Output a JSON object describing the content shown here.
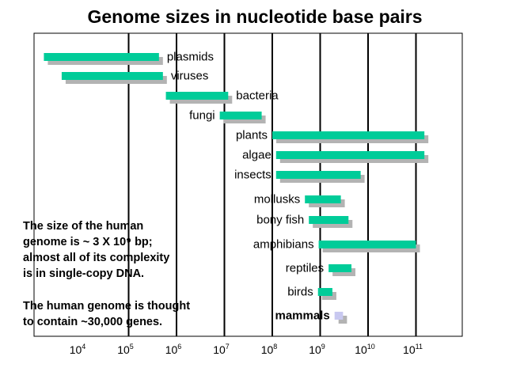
{
  "chart_data": {
    "type": "range-bar",
    "title": "Genome sizes in nucleotide base pairs",
    "x_scale": "log10",
    "xlim": [
      1000,
      10000000000000
    ],
    "gridlines_at": [
      100000,
      1000000,
      10000000,
      100000000,
      1000000000,
      10000000000,
      100000000000
    ],
    "xticks": [
      {
        "base": "10",
        "exp": "4",
        "value": 10000
      },
      {
        "base": "10",
        "exp": "5",
        "value": 100000
      },
      {
        "base": "10",
        "exp": "6",
        "value": 1000000
      },
      {
        "base": "10",
        "exp": "7",
        "value": 10000000
      },
      {
        "base": "10",
        "exp": "8",
        "value": 100000000
      },
      {
        "base": "10",
        "exp": "9",
        "value": 1000000000
      },
      {
        "base": "10",
        "exp": "10",
        "value": 10000000000
      },
      {
        "base": "10",
        "exp": "11",
        "value": 100000000000
      }
    ],
    "series_color": "#00cc99",
    "shadow_color": "#b3b3b3",
    "categories": [
      {
        "label": "plasmids",
        "min": 1700,
        "max": 430000
      },
      {
        "label": "viruses",
        "min": 4000,
        "max": 520000
      },
      {
        "label": "bacteria",
        "min": 600000,
        "max": 12000000
      },
      {
        "label": "fungi",
        "min": 8000000,
        "max": 60000000
      },
      {
        "label": "plants",
        "min": 100000000,
        "max": 150000000000
      },
      {
        "label": "algae",
        "min": 120000000,
        "max": 150000000000
      },
      {
        "label": "insects",
        "min": 120000000,
        "max": 7000000000
      },
      {
        "label": "mollusks",
        "min": 480000000,
        "max": 2700000000
      },
      {
        "label": "bony fish",
        "min": 580000000,
        "max": 3900000000
      },
      {
        "label": "amphibians",
        "min": 930000000,
        "max": 100000000000
      },
      {
        "label": "reptiles",
        "min": 1500000000,
        "max": 4500000000
      },
      {
        "label": "birds",
        "min": 900000000,
        "max": 1800000000
      },
      {
        "label": "mammals",
        "min": 2000000000,
        "max": 3000000000,
        "highlight": true
      }
    ],
    "highlight_color": "#c8c8f0"
  },
  "notes": [
    "The size of the human\ngenome is ~ 3 X 10⁹ bp;\nalmost all of its complexity\nis in single-copy DNA.",
    "The human genome is thought\nto contain ~30,000 genes."
  ]
}
